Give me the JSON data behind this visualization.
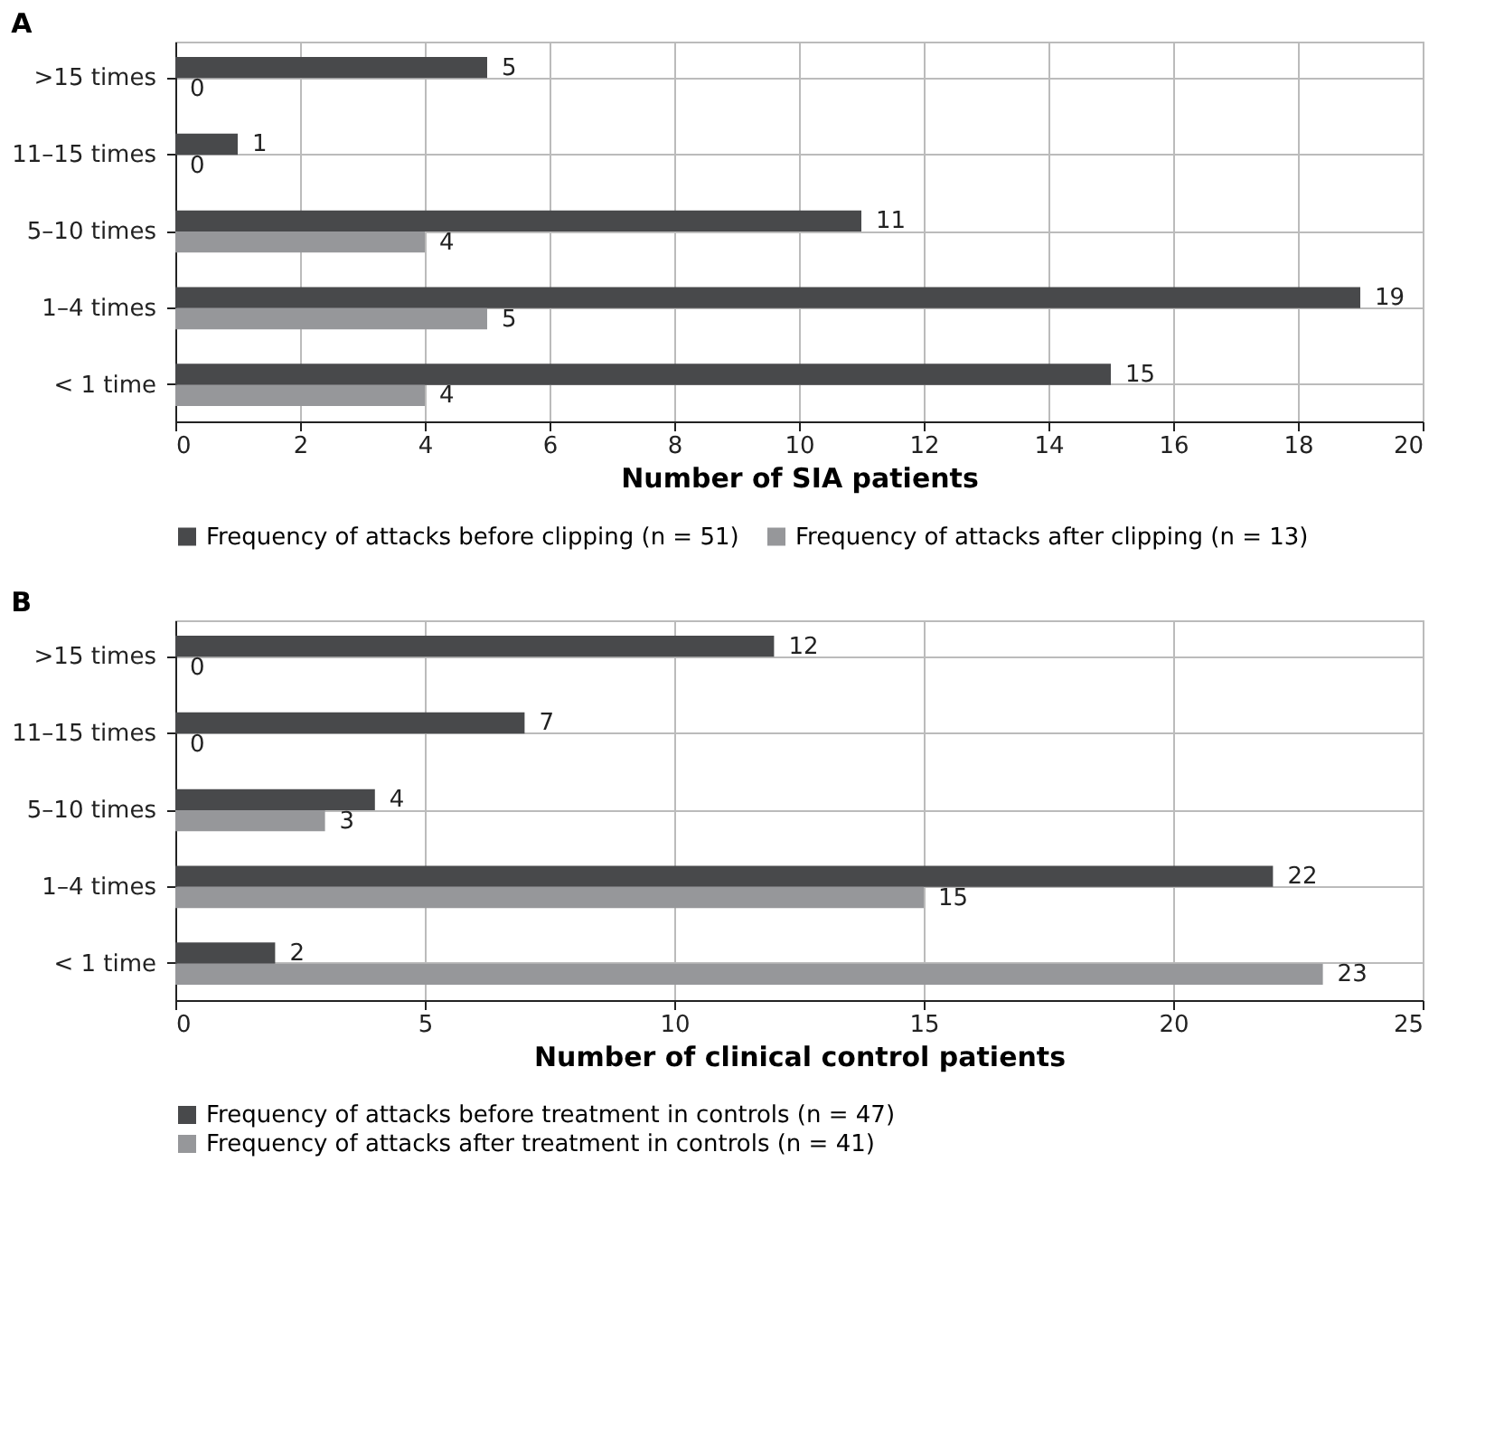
{
  "chart_data": [
    {
      "type": "bar",
      "orientation": "horizontal",
      "title": "A",
      "xlabel": "Number of SIA patients",
      "categories": [
        ">15 times",
        "11–15 times",
        "5–10 times",
        "1–4 times",
        "< 1 time"
      ],
      "series": [
        {
          "name": "Frequency  of attacks before clipping (n = 51)",
          "color": "#48494b",
          "values": [
            5,
            1,
            11,
            19,
            15
          ]
        },
        {
          "name": "Frequency of attacks after clipping (n = 13)",
          "color": "#96979a",
          "values": [
            0,
            0,
            4,
            5,
            4
          ]
        }
      ],
      "xlim": [
        0,
        20
      ],
      "xticks": [
        0,
        2,
        4,
        6,
        8,
        10,
        12,
        14,
        16,
        18,
        20
      ],
      "grid": true,
      "legend": "bottom",
      "data_labels": true
    },
    {
      "type": "bar",
      "orientation": "horizontal",
      "title": "B",
      "xlabel": "Number of clinical control patients",
      "categories": [
        ">15 times",
        "11–15 times",
        "5–10 times",
        "1–4 times",
        "< 1 time"
      ],
      "series": [
        {
          "name": "Frequency of attacks before treatment in controls (n = 47)",
          "color": "#48494b",
          "values": [
            12,
            7,
            4,
            22,
            2
          ]
        },
        {
          "name": "Frequency of attacks after treatment in  controls (n = 41)",
          "color": "#96979a",
          "values": [
            0,
            0,
            3,
            15,
            23
          ]
        }
      ],
      "xlim": [
        0,
        25
      ],
      "xticks": [
        0,
        5,
        10,
        15,
        20,
        25
      ],
      "grid": true,
      "legend": "bottom",
      "data_labels": true
    }
  ]
}
